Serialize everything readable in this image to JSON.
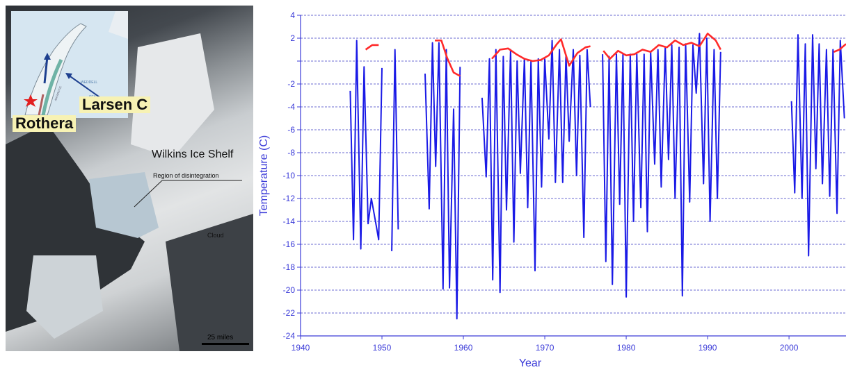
{
  "satellite_image": {
    "label_larsen": "Larsen C",
    "label_rothera": "Rothera",
    "label_wilkins": "Wilkins Ice Shelf",
    "label_disintegration": "Region of disintegration",
    "label_cloud": "Cloud",
    "label_scale": "25 miles",
    "inset_label_weddell": "WEDDELL",
    "inset_label_sea": "SEA",
    "inset_label_peninsula": "ANTARCTIC"
  },
  "colors": {
    "axis_blue": "#3a3ad8",
    "series_blue": "#1a1ae6",
    "trend_red": "#ff2a2a",
    "grid": "#6a6ad0",
    "label_bg": "#f7f2b4"
  },
  "chart_data": {
    "type": "line",
    "xlabel": "Year",
    "ylabel": "Temperature (C)",
    "xlim": [
      1940,
      2007
    ],
    "ylim": [
      -24,
      4
    ],
    "xticks": [
      1940,
      1950,
      1960,
      1970,
      1980,
      1990,
      2000
    ],
    "yticks": [
      4,
      2,
      0,
      -2,
      -4,
      -6,
      -8,
      -10,
      -12,
      -14,
      -16,
      -18,
      -20,
      -22,
      -24
    ],
    "ytick_labels": [
      "4",
      "2",
      "",
      "-2",
      "-4",
      "-6",
      "-8",
      "-10",
      "-12",
      "-14",
      "-16",
      "-18",
      "-20",
      "-22",
      "-24"
    ],
    "grid": true,
    "series": [
      {
        "role": "monthly",
        "segments": [
          {
            "x": [
              1946.1,
              1946.5,
              1946.9,
              1947.4,
              1947.8,
              1948.3,
              1948.7,
              1949.2,
              1949.6,
              1950.0
            ],
            "y": [
              -2.6,
              -15.6,
              1.8,
              -16.4,
              -0.5,
              -14.2,
              -12.0,
              -14.0,
              -15.6,
              -0.6
            ]
          },
          {
            "x": [
              1951.2,
              1951.6,
              1952.0
            ],
            "y": [
              -16.6,
              1.0,
              -14.7
            ]
          },
          {
            "x": [
              1955.3,
              1955.8,
              1956.2,
              1956.6,
              1957.0,
              1957.5,
              1957.9,
              1958.3,
              1958.8,
              1959.2,
              1959.6
            ],
            "y": [
              -1.1,
              -12.9,
              1.6,
              -9.2,
              1.6,
              -19.9,
              1.0,
              -19.8,
              -4.2,
              -22.5,
              -0.5
            ]
          },
          {
            "x": [
              1962.3,
              1962.8,
              1963.2,
              1963.6,
              1964.0,
              1964.5,
              1964.9,
              1965.3,
              1965.8,
              1966.2,
              1966.6,
              1967.0,
              1967.5,
              1967.9,
              1968.3,
              1968.8,
              1969.2,
              1969.6,
              1970.0,
              1970.5,
              1970.9,
              1971.3,
              1971.8,
              1972.2,
              1972.6,
              1973.0,
              1973.5,
              1973.9,
              1974.3,
              1974.8,
              1975.2,
              1975.6
            ],
            "y": [
              -3.2,
              -10.1,
              0.2,
              -19.1,
              1.0,
              -20.2,
              0.4,
              -13.0,
              1.0,
              -15.8,
              0.0,
              -9.8,
              0.2,
              -12.8,
              0.0,
              -18.3,
              0.2,
              -11.0,
              0.2,
              -6.8,
              1.8,
              -10.6,
              1.0,
              -10.6,
              0.5,
              -7.0,
              1.0,
              -10.0,
              0.5,
              -15.4,
              1.0,
              -4.0
            ]
          },
          {
            "x": [
              1977.1,
              1977.5,
              1977.9,
              1978.3,
              1978.8,
              1979.2,
              1979.6,
              1980.0,
              1980.5,
              1980.9,
              1981.3,
              1981.8,
              1982.2,
              1982.6,
              1983.0,
              1983.5,
              1983.9,
              1984.3,
              1984.8,
              1985.2,
              1985.6,
              1986.0,
              1986.5,
              1986.9,
              1987.3,
              1987.8,
              1988.2,
              1988.6,
              1989.0,
              1989.5,
              1989.9,
              1990.3,
              1990.8,
              1991.2,
              1991.6
            ],
            "y": [
              0.6,
              -17.5,
              0.4,
              -19.5,
              0.6,
              -12.5,
              0.6,
              -20.6,
              0.6,
              -14.0,
              0.6,
              -12.8,
              0.6,
              -14.9,
              0.8,
              -9.0,
              1.0,
              -11.0,
              1.2,
              -8.6,
              1.4,
              -12.0,
              1.2,
              -20.5,
              1.5,
              -12.3,
              1.4,
              -2.8,
              2.4,
              -10.7,
              2.0,
              -14.0,
              1.0,
              -12.0,
              0.8
            ]
          },
          {
            "x": [
              2000.3,
              2000.7,
              2001.1,
              2001.6,
              2002.0,
              2002.4,
              2002.9,
              2003.3,
              2003.7,
              2004.1,
              2004.6,
              2005.0,
              2005.4,
              2005.9,
              2006.3,
              2006.8
            ],
            "y": [
              -3.5,
              -11.5,
              2.3,
              -12.0,
              1.5,
              -17.0,
              2.3,
              -9.4,
              1.5,
              -10.7,
              1.0,
              -11.8,
              1.0,
              -13.3,
              1.8,
              -5.0
            ]
          }
        ]
      },
      {
        "role": "trend",
        "segments": [
          {
            "x": [
              1948.0,
              1948.8,
              1949.6
            ],
            "y": [
              1.0,
              1.4,
              1.4
            ]
          },
          {
            "x": [
              1956.5,
              1957.3,
              1958.0,
              1958.8,
              1959.6
            ],
            "y": [
              1.8,
              1.8,
              0.3,
              -1.0,
              -1.3
            ]
          },
          {
            "x": [
              1963.5,
              1964.5,
              1965.5,
              1966.5,
              1967.5,
              1968.5,
              1969.5,
              1970.5,
              1971.5,
              1972.0,
              1973.0,
              1974.0,
              1975.0,
              1975.6
            ],
            "y": [
              0.2,
              1.0,
              1.1,
              0.6,
              0.2,
              0.0,
              0.1,
              0.5,
              1.5,
              1.9,
              -0.4,
              0.7,
              1.2,
              1.3
            ]
          },
          {
            "x": [
              1977.2,
              1978.0,
              1979.0,
              1980.0,
              1981.0,
              1982.0,
              1983.0,
              1984.0,
              1985.0,
              1986.0,
              1987.0,
              1988.0,
              1989.0,
              1990.0,
              1991.0,
              1991.6
            ],
            "y": [
              0.9,
              0.2,
              0.9,
              0.5,
              0.6,
              1.0,
              0.8,
              1.4,
              1.2,
              1.8,
              1.4,
              1.6,
              1.3,
              2.4,
              1.8,
              1.0
            ]
          },
          {
            "x": [
              2005.5,
              2006.2,
              2007.0
            ],
            "y": [
              0.8,
              1.0,
              1.5
            ]
          }
        ]
      }
    ]
  }
}
